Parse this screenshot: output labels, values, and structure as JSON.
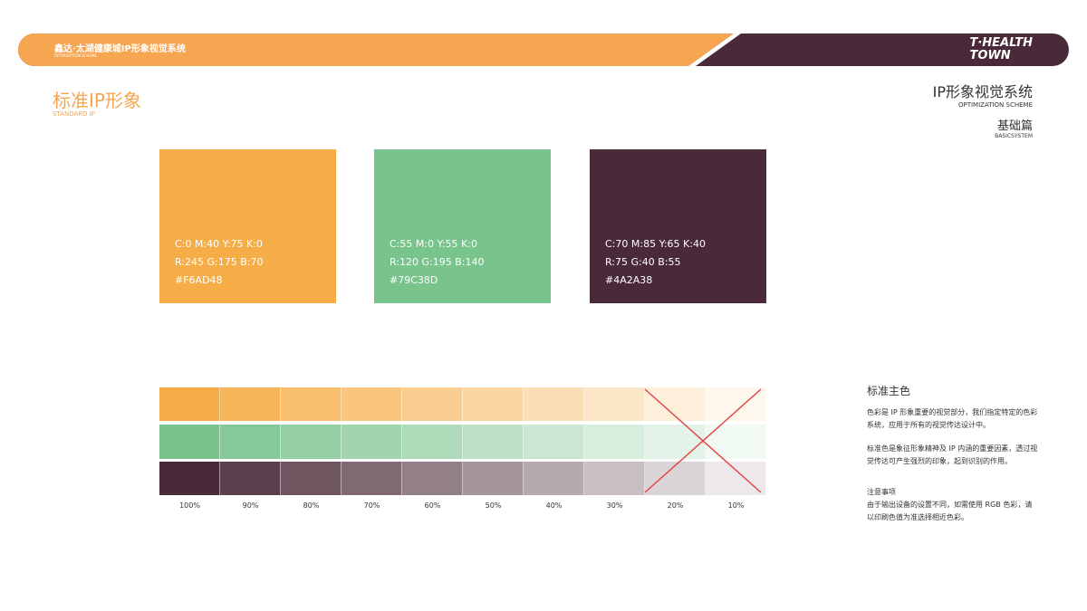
{
  "header": {
    "title": "鑫达·太湖健康城IP形象视觉系统",
    "subtitle": "OPTIMIZATION SCHEME",
    "logo_line1": "T·HEALTH",
    "logo_line2": "TOWN"
  },
  "page": {
    "title": "标准IP形象",
    "subtitle": "STANDARD IP"
  },
  "section": {
    "title": "IP形象视觉系统",
    "subtitle": "OPTIMIZATION SCHEME",
    "chapter": "基础篇",
    "chapter_en": "BASICSYSTEM"
  },
  "swatches": [
    {
      "lines": [
        "C:0 M:40 Y:75 K:0",
        "R:245 G:175 B:70",
        "#F6AD48"
      ]
    },
    {
      "lines": [
        "C:55 M:0 Y:55 K:0",
        "R:120 G:195 B:140",
        "#79C38D"
      ]
    },
    {
      "lines": [
        "C:70 M:85 Y:65 K:40",
        "R:75 G:40 B:55",
        "#4A2A38"
      ]
    }
  ],
  "tints": {
    "labels": [
      "100%",
      "90%",
      "80%",
      "70%",
      "60%",
      "50%",
      "40%",
      "30%",
      "20%",
      "10%"
    ]
  },
  "notes": {
    "title": "标准主色",
    "paragraphs": [
      "色彩是 IP 形象重要的视觉部分，我们指定特定的色彩系统，应用于所有的视觉传达设计中。",
      "标准色是象征形象精神及 IP 内涵的重要因素，透过视觉传达可产生强烈的印象，起到识别的作用。"
    ],
    "caution_title": "注意事项",
    "caution": "由于输出设备的设置不同，如需使用 RGB 色彩，请以印刷色值为准选择相近色彩。"
  }
}
